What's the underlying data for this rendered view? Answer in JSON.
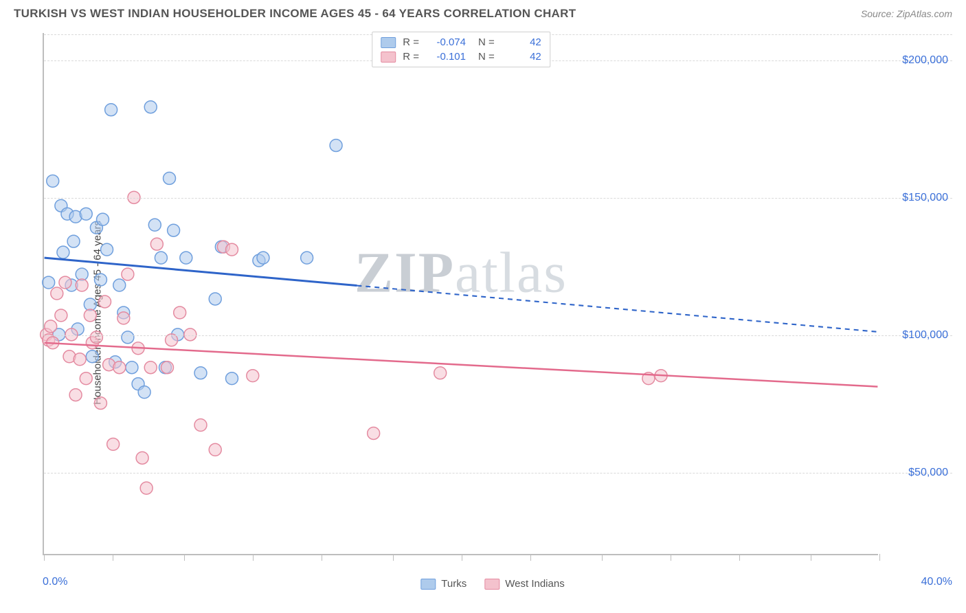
{
  "header": {
    "title": "TURKISH VS WEST INDIAN HOUSEHOLDER INCOME AGES 45 - 64 YEARS CORRELATION CHART",
    "source": "Source: ZipAtlas.com"
  },
  "watermark": {
    "bold": "ZIP",
    "light": "atlas"
  },
  "chart": {
    "type": "scatter",
    "y_axis_label": "Householder Income Ages 45 - 64 years",
    "xlim": [
      0,
      40
    ],
    "ylim": [
      20000,
      210000
    ],
    "x_ticks_pct": [
      0,
      10,
      20,
      30,
      40
    ],
    "x_tick_minor_pct": [
      3.3,
      6.7,
      13.3,
      16.7,
      23.3,
      26.7,
      33.3,
      36.7
    ],
    "x_min_label": "0.0%",
    "x_max_label": "40.0%",
    "y_ticks": [
      {
        "v": 50000,
        "label": "$50,000"
      },
      {
        "v": 100000,
        "label": "$100,000"
      },
      {
        "v": 150000,
        "label": "$150,000"
      },
      {
        "v": 200000,
        "label": "$200,000"
      }
    ],
    "grid_color": "#d9d9d9",
    "background_color": "#ffffff",
    "series": [
      {
        "name": "Turks",
        "fill": "#aecbec",
        "stroke": "#6f9fdd",
        "fill_opacity": 0.55,
        "marker_r": 9,
        "r_value": "-0.074",
        "n_value": "42",
        "regression": {
          "y_at_x0": 128000,
          "y_at_x40": 101000,
          "solid_until_x": 15,
          "color": "#2e64c9",
          "width": 3
        },
        "points": [
          {
            "x": 0.2,
            "y": 119000
          },
          {
            "x": 0.4,
            "y": 156000
          },
          {
            "x": 0.7,
            "y": 100000
          },
          {
            "x": 0.8,
            "y": 147000
          },
          {
            "x": 0.9,
            "y": 130000
          },
          {
            "x": 1.1,
            "y": 144000
          },
          {
            "x": 1.3,
            "y": 118000
          },
          {
            "x": 1.4,
            "y": 134000
          },
          {
            "x": 1.5,
            "y": 143000
          },
          {
            "x": 1.6,
            "y": 102000
          },
          {
            "x": 1.8,
            "y": 122000
          },
          {
            "x": 2.0,
            "y": 144000
          },
          {
            "x": 2.2,
            "y": 111000
          },
          {
            "x": 2.3,
            "y": 92000
          },
          {
            "x": 2.5,
            "y": 139000
          },
          {
            "x": 2.7,
            "y": 120000
          },
          {
            "x": 2.8,
            "y": 142000
          },
          {
            "x": 3.0,
            "y": 131000
          },
          {
            "x": 3.2,
            "y": 182000
          },
          {
            "x": 3.4,
            "y": 90000
          },
          {
            "x": 3.6,
            "y": 118000
          },
          {
            "x": 3.8,
            "y": 108000
          },
          {
            "x": 4.0,
            "y": 99000
          },
          {
            "x": 4.2,
            "y": 88000
          },
          {
            "x": 4.5,
            "y": 82000
          },
          {
            "x": 4.8,
            "y": 79000
          },
          {
            "x": 5.1,
            "y": 183000
          },
          {
            "x": 5.3,
            "y": 140000
          },
          {
            "x": 5.6,
            "y": 128000
          },
          {
            "x": 5.8,
            "y": 88000
          },
          {
            "x": 6.0,
            "y": 157000
          },
          {
            "x": 6.2,
            "y": 138000
          },
          {
            "x": 6.4,
            "y": 100000
          },
          {
            "x": 6.8,
            "y": 128000
          },
          {
            "x": 7.5,
            "y": 86000
          },
          {
            "x": 8.2,
            "y": 113000
          },
          {
            "x": 8.5,
            "y": 132000
          },
          {
            "x": 9.0,
            "y": 84000
          },
          {
            "x": 10.3,
            "y": 127000
          },
          {
            "x": 10.5,
            "y": 128000
          },
          {
            "x": 12.6,
            "y": 128000
          },
          {
            "x": 14.0,
            "y": 169000
          }
        ]
      },
      {
        "name": "West Indians",
        "fill": "#f4c2cd",
        "stroke": "#e48aa0",
        "fill_opacity": 0.55,
        "marker_r": 9,
        "r_value": "-0.101",
        "n_value": "42",
        "regression": {
          "y_at_x0": 97000,
          "y_at_x40": 81000,
          "solid_until_x": 40,
          "color": "#e36a8c",
          "width": 2.5
        },
        "points": [
          {
            "x": 0.1,
            "y": 100000
          },
          {
            "x": 0.2,
            "y": 98000
          },
          {
            "x": 0.3,
            "y": 103000
          },
          {
            "x": 0.4,
            "y": 97000
          },
          {
            "x": 0.6,
            "y": 115000
          },
          {
            "x": 0.8,
            "y": 107000
          },
          {
            "x": 1.0,
            "y": 119000
          },
          {
            "x": 1.2,
            "y": 92000
          },
          {
            "x": 1.3,
            "y": 100000
          },
          {
            "x": 1.5,
            "y": 78000
          },
          {
            "x": 1.7,
            "y": 91000
          },
          {
            "x": 1.8,
            "y": 118000
          },
          {
            "x": 2.0,
            "y": 84000
          },
          {
            "x": 2.2,
            "y": 107000
          },
          {
            "x": 2.3,
            "y": 97000
          },
          {
            "x": 2.5,
            "y": 99000
          },
          {
            "x": 2.7,
            "y": 75000
          },
          {
            "x": 2.9,
            "y": 112000
          },
          {
            "x": 3.1,
            "y": 89000
          },
          {
            "x": 3.3,
            "y": 60000
          },
          {
            "x": 3.6,
            "y": 88000
          },
          {
            "x": 3.8,
            "y": 106000
          },
          {
            "x": 4.0,
            "y": 122000
          },
          {
            "x": 4.3,
            "y": 150000
          },
          {
            "x": 4.5,
            "y": 95000
          },
          {
            "x": 4.7,
            "y": 55000
          },
          {
            "x": 4.9,
            "y": 44000
          },
          {
            "x": 5.1,
            "y": 88000
          },
          {
            "x": 5.4,
            "y": 133000
          },
          {
            "x": 5.9,
            "y": 88000
          },
          {
            "x": 6.1,
            "y": 98000
          },
          {
            "x": 6.5,
            "y": 108000
          },
          {
            "x": 7.0,
            "y": 100000
          },
          {
            "x": 7.5,
            "y": 67000
          },
          {
            "x": 8.2,
            "y": 58000
          },
          {
            "x": 8.6,
            "y": 132000
          },
          {
            "x": 9.0,
            "y": 131000
          },
          {
            "x": 10.0,
            "y": 85000
          },
          {
            "x": 15.8,
            "y": 64000
          },
          {
            "x": 19.0,
            "y": 86000
          },
          {
            "x": 29.0,
            "y": 84000
          },
          {
            "x": 29.6,
            "y": 85000
          }
        ]
      }
    ],
    "legend_top_labels": {
      "r": "R =",
      "n": "N ="
    },
    "legend_bottom": [
      {
        "label": "Turks",
        "fill": "#aecbec",
        "stroke": "#6f9fdd"
      },
      {
        "label": "West Indians",
        "fill": "#f4c2cd",
        "stroke": "#e48aa0"
      }
    ]
  }
}
